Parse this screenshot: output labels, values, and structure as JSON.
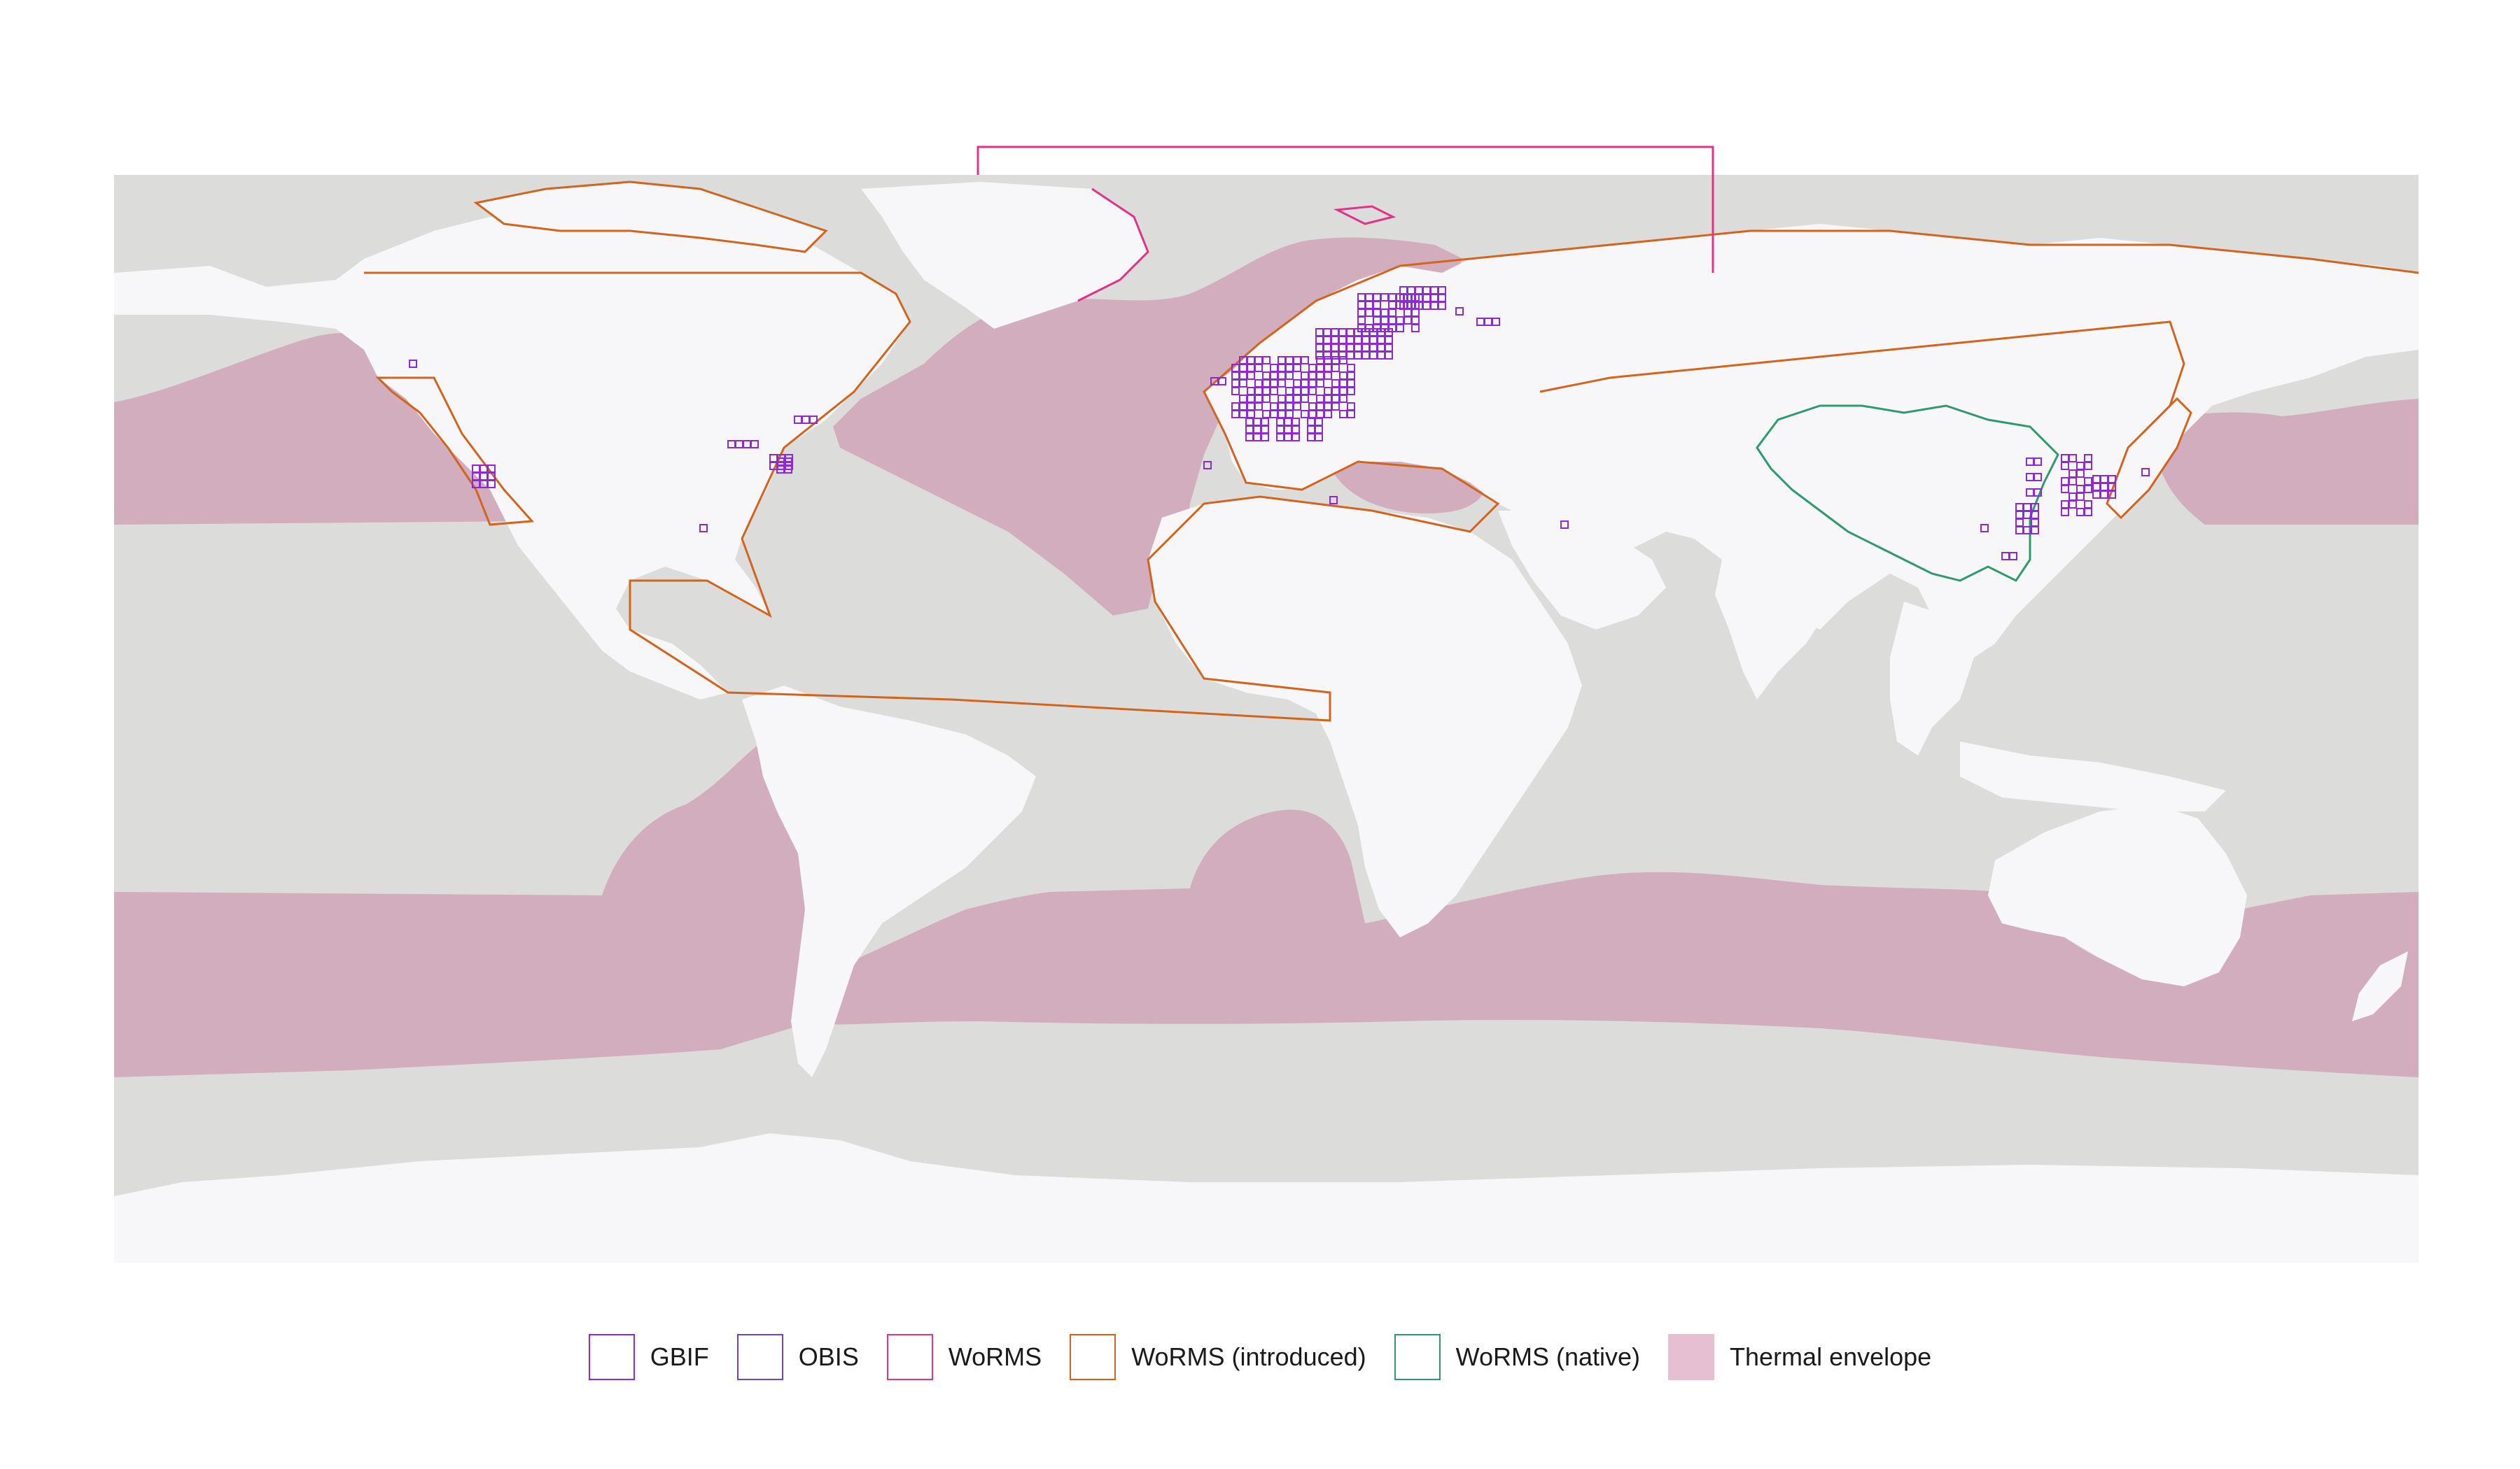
{
  "map": {
    "ocean_color": "#dcdcdb",
    "land_color": "#f7f6f9",
    "thermal_envelope_color": "#d2adbd"
  },
  "legend": [
    {
      "key": "gbif",
      "label": "GBIF",
      "color": "#8c2bd6",
      "fill": "none"
    },
    {
      "key": "obis",
      "label": "OBIS",
      "color": "#6f3fd6",
      "fill": "none"
    },
    {
      "key": "worms",
      "label": "WoRMS",
      "color": "#e0338a",
      "fill": "none"
    },
    {
      "key": "worms-introduced",
      "label": "WoRMS (introduced)",
      "color": "#d2641e",
      "fill": "none"
    },
    {
      "key": "worms-native",
      "label": "WoRMS (native)",
      "color": "#2f9a6c",
      "fill": "none"
    },
    {
      "key": "thermal-envelope",
      "label": "Thermal envelope",
      "color": "#e6bfd2",
      "fill": "#e6bfd2"
    }
  ]
}
